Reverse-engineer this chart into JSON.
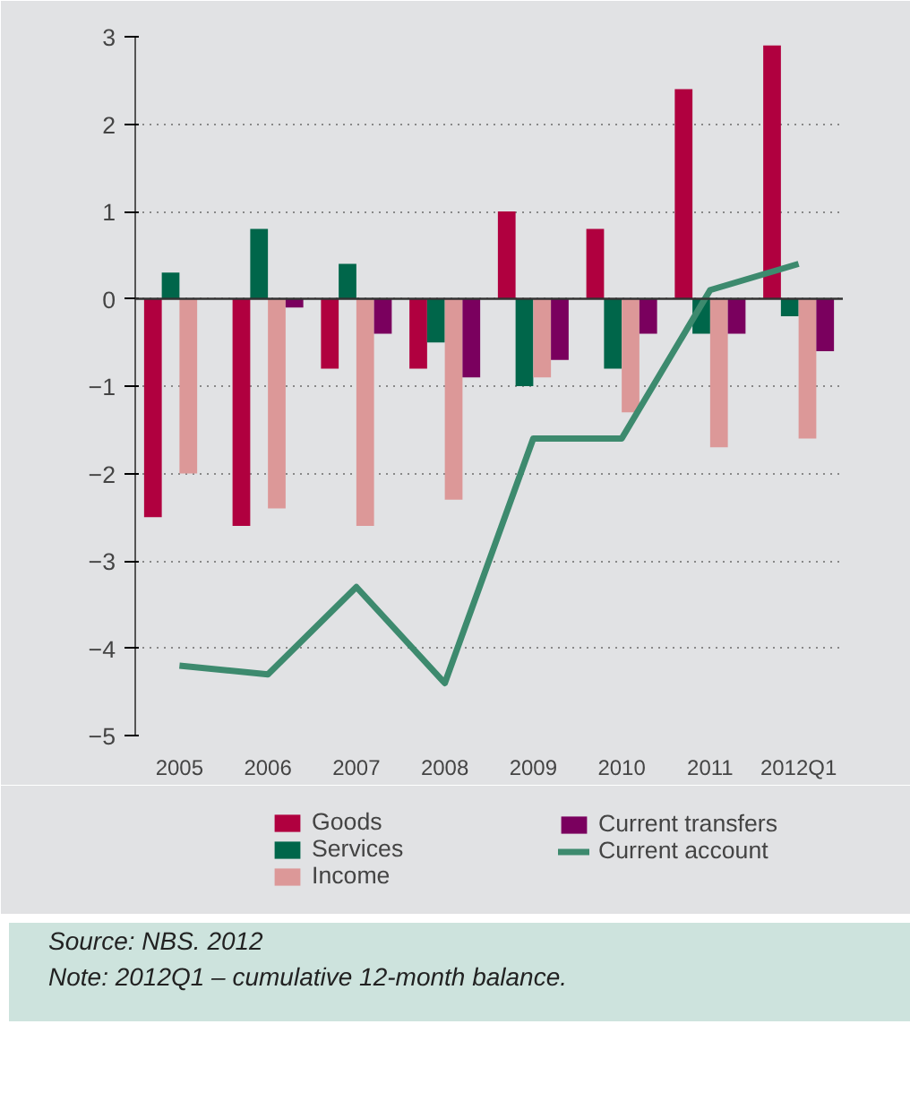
{
  "chart_data": {
    "type": "bar",
    "categories": [
      "2005",
      "2006",
      "2007",
      "2008",
      "2009",
      "2010",
      "2011",
      "2012Q1"
    ],
    "series": [
      {
        "name": "Goods",
        "color": "#b0003f",
        "values": [
          -2.5,
          -2.6,
          -0.8,
          -0.8,
          1.0,
          0.8,
          2.4,
          2.9
        ]
      },
      {
        "name": "Services",
        "color": "#00664a",
        "values": [
          0.3,
          0.8,
          0.4,
          -0.5,
          -1.0,
          -0.8,
          -0.4,
          -0.2
        ]
      },
      {
        "name": "Income",
        "color": "#dc9898",
        "values": [
          -2.0,
          -2.4,
          -2.6,
          -2.3,
          -0.9,
          -1.3,
          -1.7,
          -1.6
        ]
      },
      {
        "name": "Current transfers",
        "color": "#7a005e",
        "values": [
          null,
          -0.1,
          -0.4,
          -0.9,
          -0.7,
          -0.4,
          -0.4,
          -0.6
        ]
      },
      {
        "name": "Current account",
        "type": "line",
        "color": "#3d8a6e",
        "values": [
          -4.2,
          -4.3,
          -3.3,
          -4.4,
          -1.6,
          -1.6,
          0.1,
          0.4
        ]
      }
    ],
    "ylim": [
      -5,
      3
    ],
    "yticks": [
      -5,
      -4,
      -3,
      -2,
      -1,
      0,
      1,
      2,
      3
    ],
    "grid": "y",
    "legend": "bottom",
    "annotations": [
      "Source: NBS. 2012",
      "Note: 2012Q1 – cumulative 12-month balance."
    ]
  }
}
